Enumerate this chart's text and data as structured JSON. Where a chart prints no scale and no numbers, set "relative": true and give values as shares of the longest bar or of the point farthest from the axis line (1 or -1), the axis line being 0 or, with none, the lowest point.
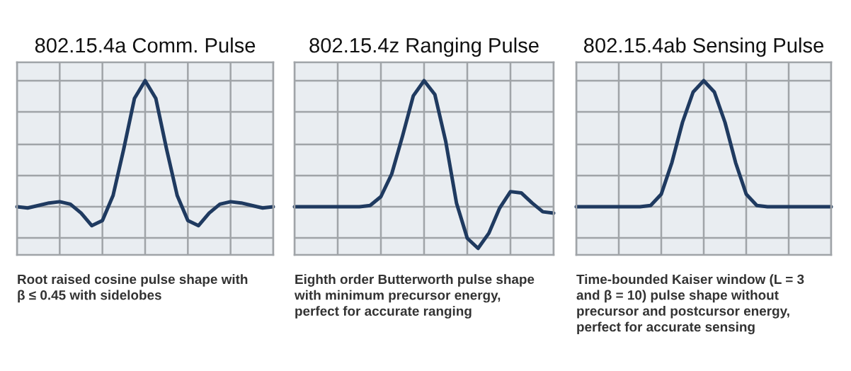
{
  "chart_data": [
    {
      "type": "line",
      "title": "802.15.4a Comm. Pulse",
      "relative": true,
      "grid": true,
      "tick_labels": false,
      "legend": false,
      "marker": "none",
      "line_style": "solid",
      "categories": [
        null,
        null,
        null,
        null,
        null,
        null,
        null,
        null,
        null,
        null,
        null,
        null,
        null,
        null,
        null,
        null,
        null,
        null,
        null,
        null,
        null,
        null,
        null,
        null,
        null
      ],
      "series": [
        {
          "color": "#1f3a60",
          "values": [
            0,
            -0.01,
            0.01,
            0.03,
            0.04,
            0.02,
            -0.05,
            -0.15,
            -0.11,
            0.09,
            0.46,
            0.86,
            1,
            0.86,
            0.46,
            0.09,
            -0.11,
            -0.15,
            -0.05,
            0.02,
            0.04,
            0.03,
            0.01,
            -0.01,
            0
          ]
        }
      ],
      "annotations": [
        "Root raised cosine pulse shape with\nβ ≤ 0.45 with sidelobes"
      ]
    },
    {
      "type": "line",
      "title": "802.15.4z Ranging Pulse",
      "relative": true,
      "grid": true,
      "tick_labels": false,
      "legend": false,
      "marker": "none",
      "line_style": "solid",
      "categories": [
        null,
        null,
        null,
        null,
        null,
        null,
        null,
        null,
        null,
        null,
        null,
        null,
        null,
        null,
        null,
        null,
        null,
        null,
        null,
        null,
        null,
        null,
        null,
        null,
        null
      ],
      "series": [
        {
          "color": "#1f3a60",
          "values": [
            0,
            0,
            0,
            0,
            0,
            0,
            0,
            0.01,
            0.08,
            0.26,
            0.56,
            0.88,
            1,
            0.89,
            0.52,
            0.03,
            -0.25,
            -0.33,
            -0.21,
            -0.01,
            0.12,
            0.11,
            0.03,
            -0.04,
            -0.05
          ]
        }
      ],
      "annotations": [
        "Eighth order Butterworth pulse shape\nwith minimum precursor energy,\nperfect for accurate ranging"
      ]
    },
    {
      "type": "line",
      "title": "802.15.4ab Sensing Pulse",
      "relative": true,
      "grid": true,
      "tick_labels": false,
      "legend": false,
      "marker": "none",
      "line_style": "solid",
      "categories": [
        null,
        null,
        null,
        null,
        null,
        null,
        null,
        null,
        null,
        null,
        null,
        null,
        null,
        null,
        null,
        null,
        null,
        null,
        null,
        null,
        null,
        null,
        null,
        null,
        null
      ],
      "series": [
        {
          "color": "#1f3a60",
          "values": [
            0,
            0,
            0,
            0,
            0,
            0,
            0,
            0.01,
            0.1,
            0.35,
            0.67,
            0.91,
            1,
            0.91,
            0.67,
            0.35,
            0.1,
            0.01,
            0,
            0,
            0,
            0,
            0,
            0,
            0
          ]
        }
      ],
      "annotations": [
        "Time-bounded Kaiser window (L = 3\nand β = 10) pulse shape without\nprecursor and postcursor energy,\nperfect for accurate sensing"
      ]
    }
  ]
}
